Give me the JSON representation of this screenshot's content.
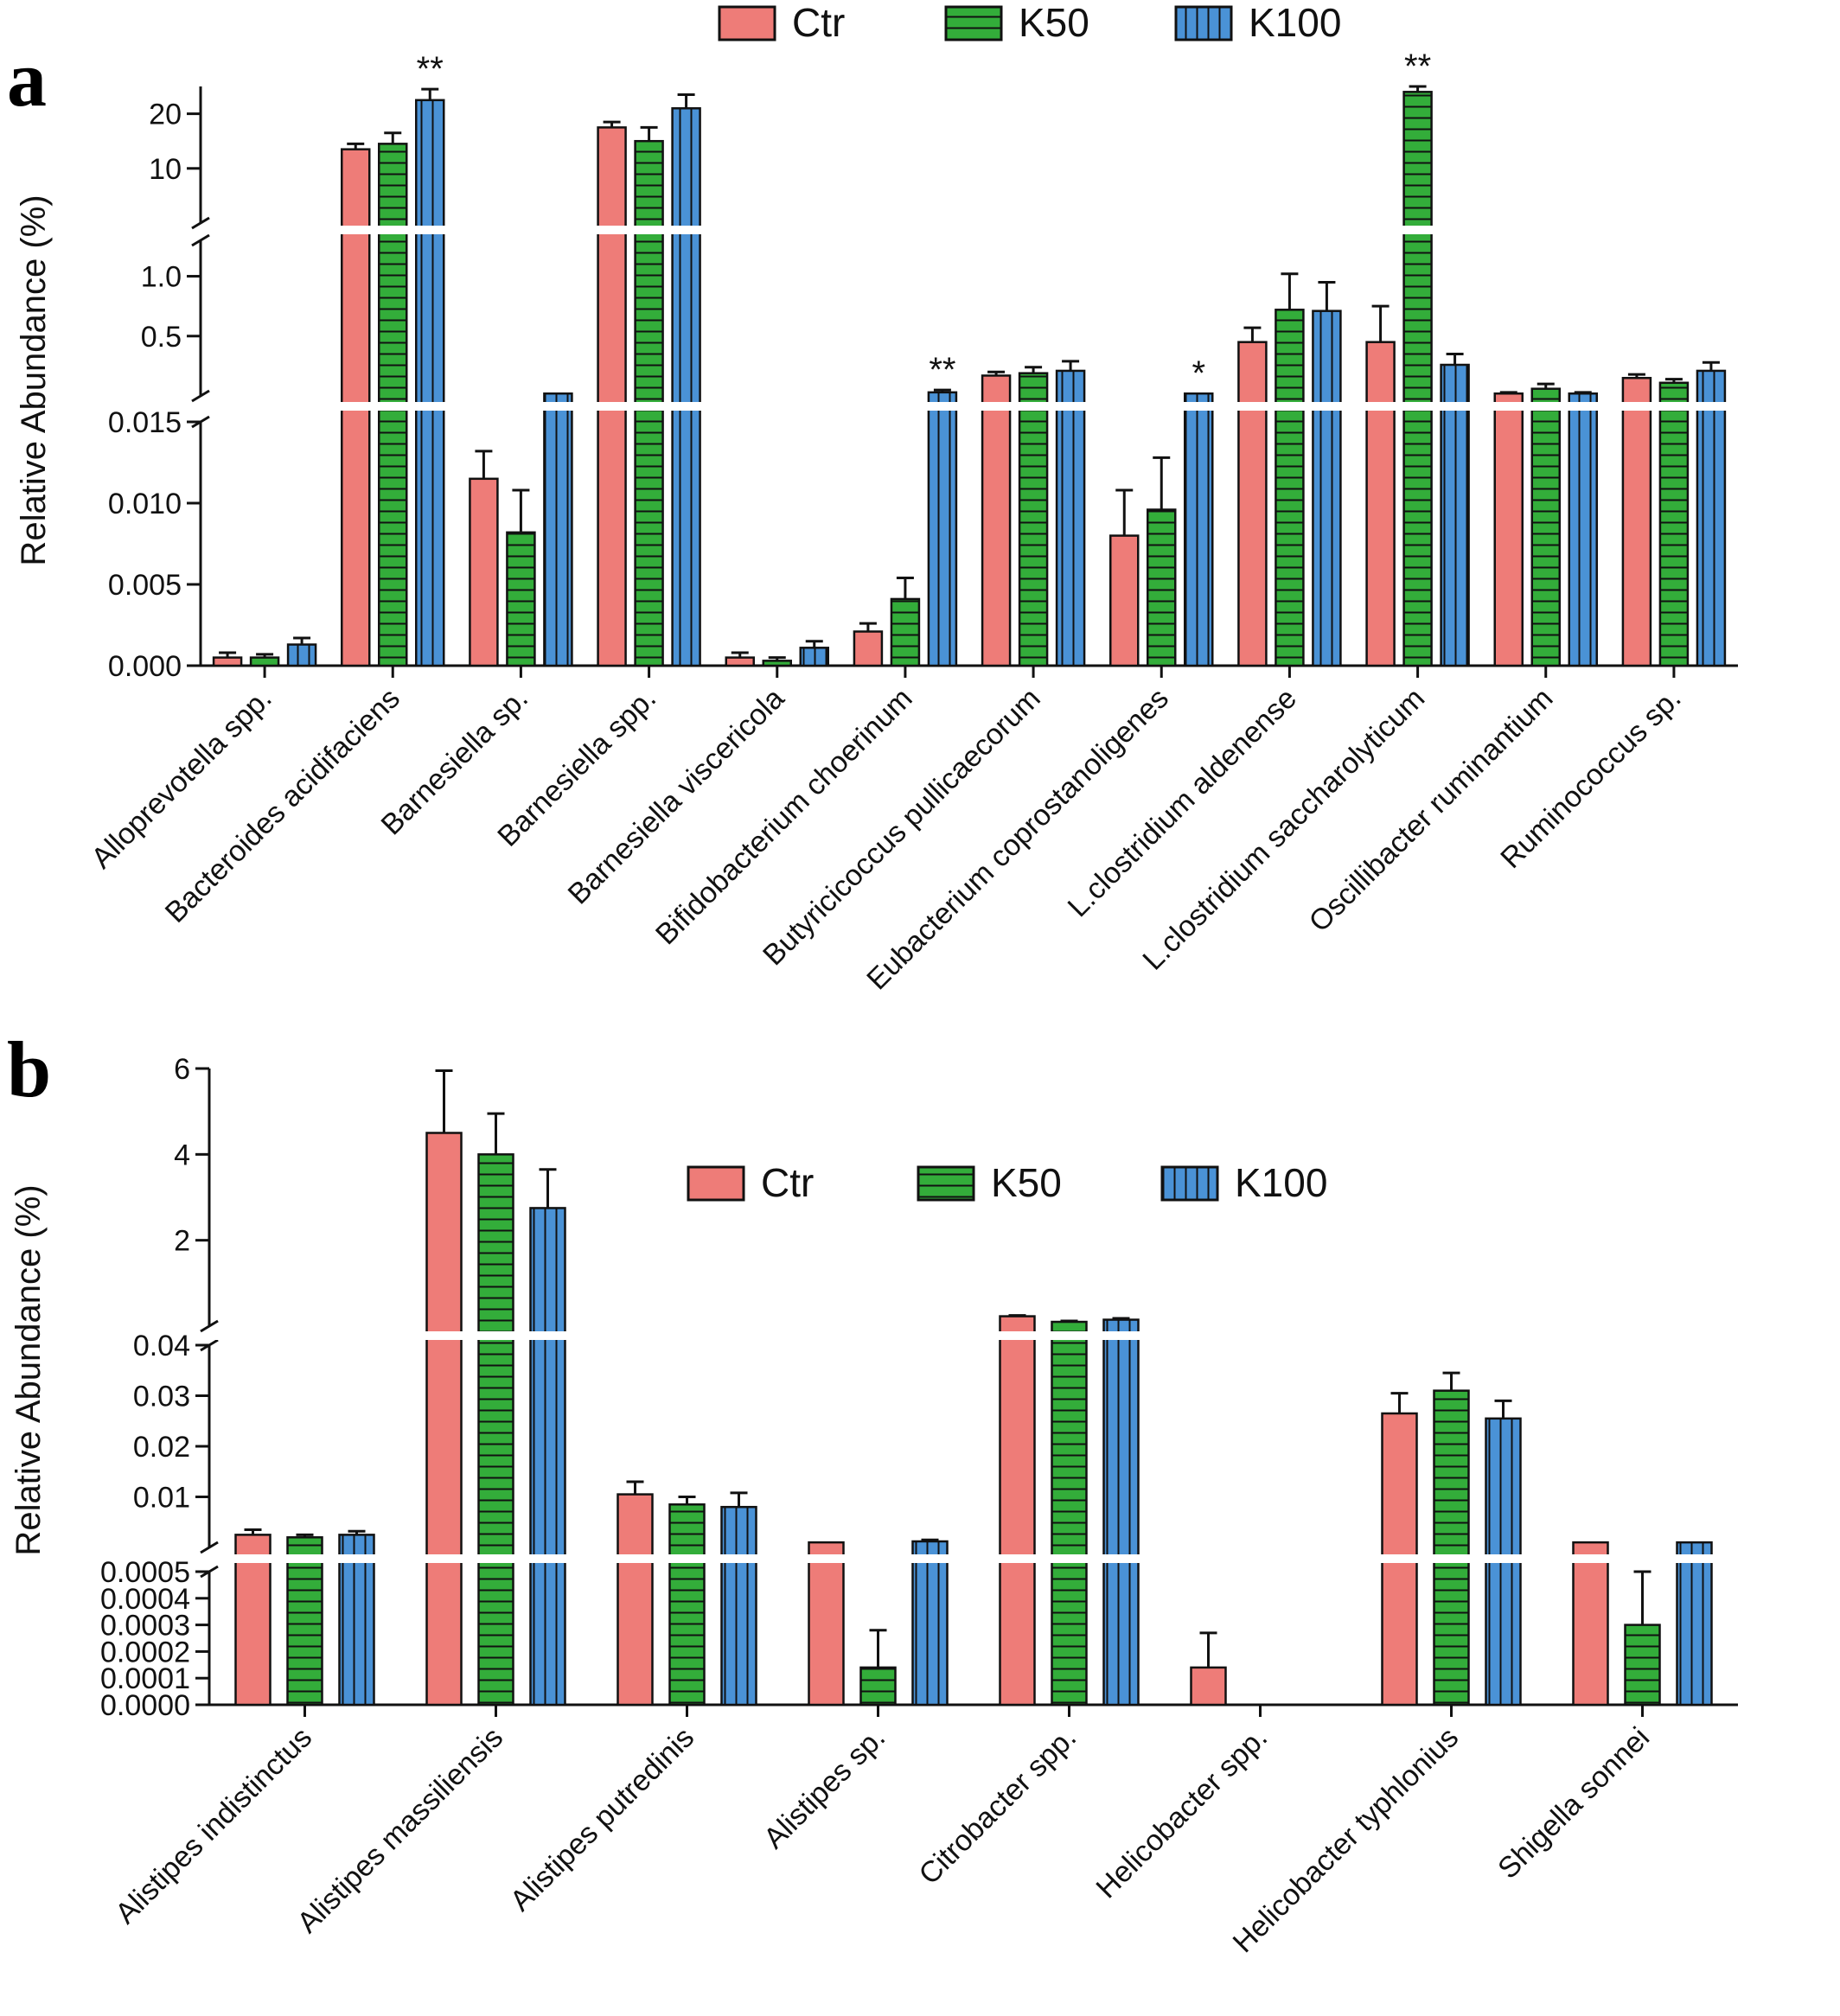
{
  "colors": {
    "Ctr": "#ee7c78",
    "K50": "#33ad3a",
    "K100": "#4a92d6"
  },
  "chart_data": [
    {
      "type": "bar",
      "panel_label": "a",
      "ylabel": "Relative Abundance (%)",
      "y_axis": "broken",
      "segments": [
        {
          "range": [
            0,
            0.015
          ],
          "ticks": [
            "0.000",
            "0.005",
            "0.010",
            "0.015"
          ]
        },
        {
          "range": [
            0,
            1.3
          ],
          "ticks": [
            "0.5",
            "1.0"
          ]
        },
        {
          "range": [
            0,
            25
          ],
          "ticks": [
            "10",
            "20"
          ]
        }
      ],
      "legend": [
        "Ctr",
        "K50",
        "K100"
      ],
      "legend_position": "top",
      "categories": [
        "Alloprevotella spp.",
        "Bacteroides acidifaciens",
        "Barnesiella sp.",
        "Barnesiella spp.",
        "Barnesiella viscericola",
        "Bifidobacterium choerinum",
        "Butyricicoccus pullicaecorum",
        "Eubacterium coprostanoligenes",
        "L.clostridium aldenense",
        "L.clostridium saccharolyticum",
        "Oscillibacter ruminantium",
        "Ruminococcus sp."
      ],
      "series": [
        {
          "name": "Ctr",
          "values": [
            0.0005,
            13.5,
            0.0115,
            17.5,
            0.0005,
            0.0021,
            0.17,
            0.008,
            0.45,
            0.45,
            0.02,
            0.15
          ],
          "errors": [
            0.0003,
            1.0,
            0.0017,
            1.0,
            0.0003,
            0.0005,
            0.03,
            0.0028,
            0.12,
            0.3,
            0.01,
            0.03
          ]
        },
        {
          "name": "K50",
          "values": [
            0.0005,
            14.5,
            0.0082,
            15.0,
            0.0003,
            0.0041,
            0.19,
            0.0096,
            0.72,
            24.0,
            0.06,
            0.11
          ],
          "errors": [
            0.0002,
            2.0,
            0.0026,
            2.5,
            0.0002,
            0.0013,
            0.05,
            0.0032,
            0.3,
            2.0,
            0.04,
            0.03
          ]
        },
        {
          "name": "K100",
          "values": [
            0.0013,
            22.5,
            0.02,
            21.0,
            0.0011,
            0.03,
            0.21,
            0.02,
            0.71,
            0.26,
            0.02,
            0.21
          ],
          "errors": [
            0.0004,
            2.0,
            0.0,
            2.5,
            0.0004,
            0.02,
            0.08,
            0.0,
            0.24,
            0.09,
            0.01,
            0.07
          ]
        }
      ],
      "annotations": [
        {
          "category": "Bacteroides acidifaciens",
          "series": "K100",
          "text": "**"
        },
        {
          "category": "Bifidobacterium choerinum",
          "series": "K100",
          "text": "**"
        },
        {
          "category": "Eubacterium coprostanoligenes",
          "series": "K100",
          "text": "*"
        },
        {
          "category": "L.clostridium saccharolyticum",
          "series": "K50",
          "text": "**"
        }
      ]
    },
    {
      "type": "bar",
      "panel_label": "b",
      "ylabel": "Relative Abundance (%)",
      "y_axis": "broken",
      "segments": [
        {
          "range": [
            0,
            0.0005
          ],
          "ticks": [
            "0.0000",
            "0.0001",
            "0.0002",
            "0.0003",
            "0.0004",
            "0.0005"
          ]
        },
        {
          "range": [
            0,
            0.04
          ],
          "ticks": [
            "0.01",
            "0.02",
            "0.03",
            "0.04"
          ]
        },
        {
          "range": [
            0,
            6
          ],
          "ticks": [
            "2",
            "4",
            "6"
          ]
        }
      ],
      "legend": [
        "Ctr",
        "K50",
        "K100"
      ],
      "legend_position": "top-center",
      "categories": [
        "Alistipes indistinctus",
        "Alistipes massiliensis",
        "Alistipes putredinis",
        "Alistipes sp.",
        "Citrobacter spp.",
        "Helicobacter spp.",
        "Helicobacter typhlonius",
        "Shigella sonnei"
      ],
      "series": [
        {
          "name": "Ctr",
          "values": [
            0.0025,
            4.5,
            0.0105,
            0.001,
            0.23,
            0.00014,
            0.0265,
            0.001
          ],
          "errors": [
            0.001,
            1.45,
            0.0025,
            0.0,
            0.02,
            0.00013,
            0.004,
            0.0
          ]
        },
        {
          "name": "K50",
          "values": [
            0.002,
            4.0,
            0.0085,
            0.00014,
            0.1,
            0.0,
            0.031,
            0.0003
          ],
          "errors": [
            0.0005,
            0.95,
            0.0015,
            0.00014,
            0.02,
            0.0,
            0.0035,
            0.0002
          ]
        },
        {
          "name": "K100",
          "values": [
            0.0025,
            2.75,
            0.008,
            0.0012,
            0.15,
            0.0,
            0.0255,
            0.001
          ],
          "errors": [
            0.0007,
            0.9,
            0.0028,
            0.0003,
            0.03,
            0.0,
            0.0035,
            0.0
          ]
        }
      ]
    }
  ]
}
